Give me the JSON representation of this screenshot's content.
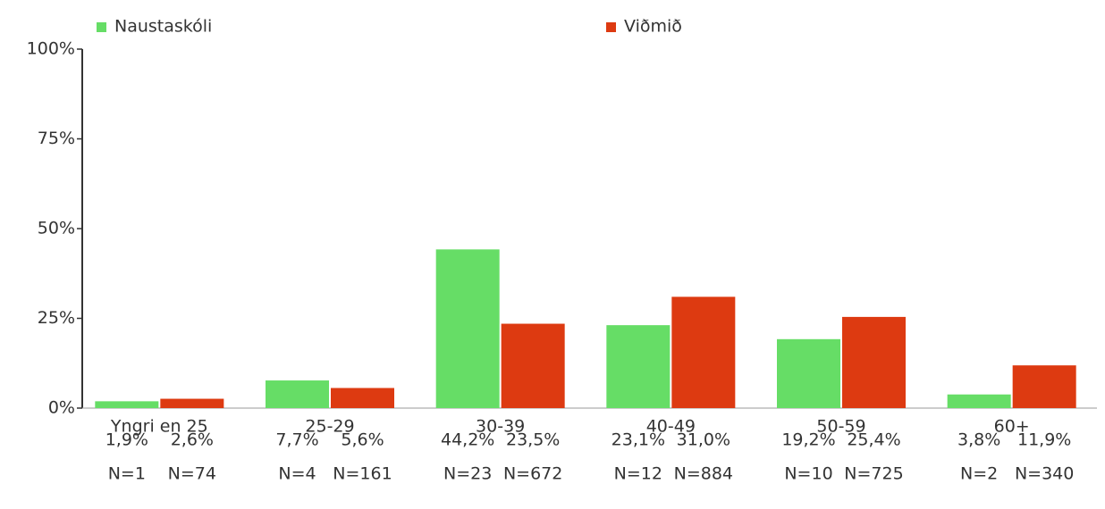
{
  "chart_data": {
    "type": "bar",
    "categories": [
      "Yngri en 25",
      "25-29",
      "30-39",
      "40-49",
      "50-59",
      "60+"
    ],
    "series": [
      {
        "name": "Naustaskóli",
        "color": "#66dd66",
        "values": [
          1.9,
          7.7,
          44.2,
          23.1,
          19.2,
          3.8
        ],
        "value_labels": [
          "1,9%",
          "7,7%",
          "44,2%",
          "23,1%",
          "19,2%",
          "3,8%"
        ],
        "n_labels": [
          "N=1",
          "N=4",
          "N=23",
          "N=12",
          "N=10",
          "N=2"
        ]
      },
      {
        "name": "Viðmið",
        "color": "#dd3a11",
        "values": [
          2.6,
          5.6,
          23.5,
          31.0,
          25.4,
          11.9
        ],
        "value_labels": [
          "2,6%",
          "5,6%",
          "23,5%",
          "31,0%",
          "25,4%",
          "11,9%"
        ],
        "n_labels": [
          "N=74",
          "N=161",
          "N=672",
          "N=884",
          "N=725",
          "N=340"
        ]
      }
    ],
    "ylim": [
      0,
      100
    ],
    "yticks": [
      {
        "value": 0,
        "label": "0%"
      },
      {
        "value": 25,
        "label": "25%"
      },
      {
        "value": 50,
        "label": "50%"
      },
      {
        "value": 75,
        "label": "75%"
      },
      {
        "value": 100,
        "label": "100%"
      }
    ],
    "legend": "top"
  }
}
